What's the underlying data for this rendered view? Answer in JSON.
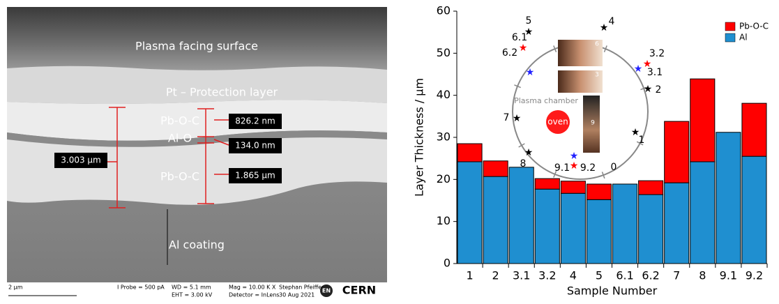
{
  "micrograph": {
    "labels": [
      "Plasma facing surface",
      "Pt – Protection layer",
      "Pb-O-C",
      "Al-O",
      "Pb-O-C",
      "Al coating"
    ],
    "measurements": [
      "826.2 nm",
      "134.0 nm",
      "1.865 µm",
      "3.003 µm"
    ],
    "footer": [
      "2 µm",
      "I Probe =  500 pA",
      "WD = 5.1 mm",
      "EHT = 3.00 kV",
      "Mag = 10.00 K X",
      "Detector = InLens",
      "Stephan Pfeiffer",
      "30 Aug 2021",
      "EN",
      "CERN"
    ]
  },
  "chart_data": {
    "type": "bar",
    "stacked": true,
    "x_label": "Sample Number",
    "y_label": "Layer Thickness / µm",
    "categories": [
      "1",
      "2",
      "3.1",
      "3.2",
      "4",
      "5",
      "6.1",
      "6.2",
      "7",
      "8",
      "9.1",
      "9.2"
    ],
    "series": [
      {
        "name": "Al",
        "color": "#1f8fd0",
        "values": [
          24.2,
          20.7,
          22.9,
          17.7,
          16.7,
          15.2,
          18.9,
          16.4,
          19.2,
          24.2,
          31.2,
          25.5
        ]
      },
      {
        "name": "Pb-O-C",
        "color": "#ff0000",
        "values": [
          4.3,
          3.7,
          0,
          2.5,
          2.9,
          3.7,
          0,
          3.3,
          14.6,
          19.7,
          0,
          12.6
        ]
      }
    ],
    "ylim": [
      0,
      60
    ],
    "yticks": [
      0,
      10,
      20,
      30,
      40,
      50,
      60
    ],
    "grid": false,
    "legend": "upper right",
    "inset_labels": [
      "5",
      "4",
      "6.1",
      "6.2",
      "3.2",
      "3.1",
      "2",
      "7",
      "1",
      "8",
      "9.1",
      "9.2",
      "0",
      "Plasma chamber",
      "oven",
      "6",
      "3",
      "9"
    ]
  }
}
